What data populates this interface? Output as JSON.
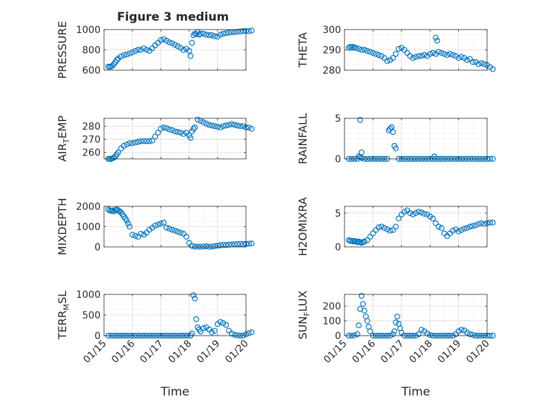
{
  "figure": {
    "title": "Figure 3 medium",
    "marker_color": "#0072BD",
    "grid_color": "#d4d4d4"
  },
  "chart_data": [
    {
      "type": "scatter",
      "id": "pressure",
      "ylabel": "PRESSURE",
      "xlim": [
        0,
        5
      ],
      "ylim": [
        600,
        1000
      ],
      "yticks": [
        600,
        800,
        1000
      ],
      "yticklabels": [
        "600",
        "800",
        "1000"
      ],
      "xticks": [
        0,
        1,
        2,
        3,
        4,
        5
      ],
      "xticklabels": [
        "01/15",
        "01/16",
        "01/17",
        "01/18",
        "01/19",
        "01/20"
      ],
      "show_xticklabels": false,
      "xlabel": "",
      "x": [
        0.15,
        0.2,
        0.25,
        0.3,
        0.35,
        0.4,
        0.45,
        0.5,
        0.6,
        0.7,
        0.8,
        0.9,
        1.0,
        1.1,
        1.2,
        1.3,
        1.4,
        1.5,
        1.6,
        1.7,
        1.8,
        1.9,
        2.0,
        2.1,
        2.2,
        2.3,
        2.4,
        2.5,
        2.6,
        2.7,
        2.8,
        2.9,
        3.0,
        3.05,
        3.1,
        3.15,
        3.2,
        3.25,
        3.3,
        3.35,
        3.4,
        3.5,
        3.6,
        3.7,
        3.8,
        3.9,
        4.0,
        4.1,
        4.2,
        4.3,
        4.4,
        4.5,
        4.6,
        4.7,
        4.8,
        4.9,
        5.0,
        5.1,
        5.2
      ],
      "y": [
        635,
        632,
        635,
        645,
        660,
        680,
        700,
        715,
        735,
        748,
        755,
        765,
        775,
        790,
        800,
        800,
        815,
        800,
        790,
        815,
        845,
        870,
        895,
        905,
        890,
        875,
        865,
        850,
        835,
        820,
        800,
        810,
        790,
        740,
        870,
        945,
        960,
        955,
        975,
        950,
        960,
        960,
        950,
        945,
        945,
        935,
        930,
        950,
        960,
        965,
        970,
        975,
        975,
        980,
        980,
        985,
        985,
        985,
        990
      ]
    },
    {
      "type": "scatter",
      "id": "theta",
      "ylabel": "THETA",
      "xlim": [
        0,
        5
      ],
      "ylim": [
        280,
        300
      ],
      "yticks": [
        280,
        290,
        300
      ],
      "yticklabels": [
        "280",
        "290",
        "300"
      ],
      "xticks": [
        0,
        1,
        2,
        3,
        4,
        5
      ],
      "xticklabels": [
        "01/15",
        "01/16",
        "01/17",
        "01/18",
        "01/19",
        "01/20"
      ],
      "show_xticklabels": false,
      "xlabel": "",
      "x": [
        0.15,
        0.2,
        0.25,
        0.3,
        0.35,
        0.4,
        0.5,
        0.6,
        0.7,
        0.8,
        0.9,
        1.0,
        1.1,
        1.2,
        1.3,
        1.4,
        1.5,
        1.6,
        1.7,
        1.8,
        1.9,
        2.0,
        2.1,
        2.2,
        2.3,
        2.4,
        2.5,
        2.6,
        2.7,
        2.8,
        2.9,
        3.0,
        3.1,
        3.2,
        3.3,
        3.4,
        3.5,
        3.6,
        3.7,
        3.8,
        3.9,
        4.0,
        4.1,
        4.2,
        4.3,
        4.4,
        4.5,
        4.6,
        4.7,
        4.8,
        4.9,
        5.0,
        5.1,
        5.2,
        3.2,
        3.25
      ],
      "y": [
        291,
        291.5,
        291,
        291.5,
        291,
        291,
        290.5,
        290,
        290,
        289.5,
        289,
        288.5,
        288,
        287.5,
        287,
        286,
        284.5,
        285,
        286,
        288,
        290.5,
        291,
        290,
        288.5,
        287,
        286,
        286.5,
        287,
        287,
        287.5,
        287,
        288,
        288.5,
        288,
        289,
        288.5,
        288,
        287.5,
        288,
        287.5,
        287,
        286,
        286.5,
        286,
        285,
        285.5,
        284,
        284,
        283,
        283.5,
        283,
        282.5,
        281.5,
        280.5,
        296,
        294.5
      ]
    },
    {
      "type": "scatter",
      "id": "air_temp",
      "ylabel": "AIR_TEMP",
      "xlim": [
        0,
        5
      ],
      "ylim": [
        255,
        286
      ],
      "yticks": [
        260,
        270,
        280
      ],
      "yticklabels": [
        "260",
        "270",
        "280"
      ],
      "xticks": [
        0,
        1,
        2,
        3,
        4,
        5
      ],
      "xticklabels": [
        "01/15",
        "01/16",
        "01/17",
        "01/18",
        "01/19",
        "01/20"
      ],
      "show_xticklabels": false,
      "xlabel": "",
      "x": [
        0.15,
        0.2,
        0.25,
        0.3,
        0.35,
        0.4,
        0.45,
        0.5,
        0.6,
        0.7,
        0.8,
        0.9,
        1.0,
        1.1,
        1.2,
        1.3,
        1.4,
        1.5,
        1.6,
        1.7,
        1.8,
        1.9,
        2.0,
        2.1,
        2.2,
        2.3,
        2.4,
        2.5,
        2.6,
        2.7,
        2.8,
        2.9,
        3.0,
        3.05,
        3.1,
        3.15,
        3.2,
        3.3,
        3.4,
        3.5,
        3.6,
        3.7,
        3.8,
        3.9,
        4.0,
        4.1,
        4.2,
        4.3,
        4.4,
        4.5,
        4.6,
        4.7,
        4.8,
        4.9,
        5.0,
        5.1,
        5.2
      ],
      "y": [
        255,
        255,
        255,
        255.5,
        256,
        257,
        258.5,
        260,
        263,
        265,
        266,
        267,
        267,
        267.5,
        268,
        268.5,
        268.5,
        268.5,
        268.5,
        269,
        272,
        275,
        278,
        279,
        278.5,
        277.5,
        277,
        276,
        275.5,
        275,
        274,
        275,
        273,
        271,
        276,
        278,
        279,
        285,
        284,
        283,
        282,
        281,
        280.5,
        280,
        279.5,
        279,
        280,
        280.5,
        281,
        281.5,
        281,
        280.5,
        280,
        280,
        279,
        279,
        278
      ]
    },
    {
      "type": "scatter",
      "id": "rainfall",
      "ylabel": "RAINFALL",
      "xlim": [
        0,
        5
      ],
      "ylim": [
        0,
        5
      ],
      "yticks": [
        0,
        5
      ],
      "yticklabels": [
        "0",
        "5"
      ],
      "xticks": [
        0,
        1,
        2,
        3,
        4,
        5
      ],
      "xticklabels": [
        "01/15",
        "01/16",
        "01/17",
        "01/18",
        "01/19",
        "01/20"
      ],
      "show_xticklabels": false,
      "xlabel": "",
      "x": [
        0.15,
        0.25,
        0.35,
        0.45,
        0.5,
        0.55,
        0.6,
        0.7,
        0.8,
        0.9,
        1.0,
        1.1,
        1.2,
        1.3,
        1.4,
        1.5,
        1.55,
        1.6,
        1.65,
        1.7,
        1.75,
        1.8,
        1.9,
        2.0,
        2.1,
        2.2,
        2.3,
        2.4,
        2.5,
        2.6,
        2.7,
        2.8,
        2.9,
        3.0,
        3.1,
        3.2,
        3.3,
        3.4,
        3.5,
        3.6,
        3.7,
        3.8,
        3.9,
        4.0,
        4.1,
        4.2,
        4.3,
        4.4,
        4.5,
        4.6,
        4.7,
        4.8,
        4.9,
        5.0,
        5.1,
        5.2,
        0.55,
        0.6,
        3.15
      ],
      "y": [
        0,
        0,
        0,
        0,
        0.3,
        4.8,
        0.8,
        0,
        0,
        0,
        0,
        0,
        0,
        0,
        0,
        0,
        3.5,
        3.7,
        3.9,
        3.3,
        1.6,
        1.3,
        0,
        0,
        0,
        0,
        0,
        0,
        0,
        0,
        0,
        0,
        0,
        0,
        0,
        0,
        0,
        0,
        0,
        0,
        0,
        0,
        0,
        0,
        0,
        0,
        0,
        0,
        0,
        0,
        0,
        0,
        0,
        0,
        0,
        0,
        0.2,
        0.1,
        0.3
      ]
    },
    {
      "type": "scatter",
      "id": "mixdepth",
      "ylabel": "MIXDEPTH",
      "xlim": [
        0,
        5
      ],
      "ylim": [
        0,
        2000
      ],
      "yticks": [
        0,
        1000,
        2000
      ],
      "yticklabels": [
        "0",
        "1000",
        "2000"
      ],
      "xticks": [
        0,
        1,
        2,
        3,
        4,
        5
      ],
      "xticklabels": [
        "01/15",
        "01/16",
        "01/17",
        "01/18",
        "01/19",
        "01/20"
      ],
      "show_xticklabels": false,
      "xlabel": "",
      "x": [
        0.15,
        0.2,
        0.25,
        0.3,
        0.35,
        0.4,
        0.45,
        0.5,
        0.55,
        0.6,
        0.65,
        0.7,
        0.75,
        0.8,
        0.85,
        0.9,
        1.0,
        1.1,
        1.2,
        1.3,
        1.4,
        1.5,
        1.6,
        1.7,
        1.8,
        1.9,
        2.0,
        2.1,
        2.2,
        2.3,
        2.4,
        2.5,
        2.6,
        2.7,
        2.8,
        2.9,
        3.0,
        3.1,
        3.2,
        3.3,
        3.4,
        3.5,
        3.6,
        3.7,
        3.8,
        3.9,
        4.0,
        4.1,
        4.2,
        4.3,
        4.4,
        4.5,
        4.6,
        4.7,
        4.8,
        4.9,
        5.0,
        5.1,
        5.2
      ],
      "y": [
        1850,
        1800,
        1780,
        1800,
        1750,
        1820,
        1850,
        1800,
        1750,
        1700,
        1600,
        1500,
        1400,
        1300,
        1150,
        1000,
        600,
        550,
        500,
        650,
        600,
        700,
        850,
        950,
        1050,
        1100,
        1150,
        1200,
        950,
        900,
        850,
        800,
        750,
        700,
        650,
        500,
        200,
        50,
        20,
        10,
        15,
        20,
        30,
        10,
        20,
        40,
        60,
        80,
        100,
        90,
        110,
        120,
        130,
        140,
        150,
        140,
        150,
        160,
        170
      ]
    },
    {
      "type": "scatter",
      "id": "h2omixra",
      "ylabel": "H2OMIXRA",
      "xlim": [
        0,
        5
      ],
      "ylim": [
        0,
        6
      ],
      "yticks": [
        0,
        5
      ],
      "yticklabels": [
        "0",
        "5"
      ],
      "xticks": [
        0,
        1,
        2,
        3,
        4,
        5
      ],
      "xticklabels": [
        "01/15",
        "01/16",
        "01/17",
        "01/18",
        "01/19",
        "01/20"
      ],
      "show_xticklabels": false,
      "xlabel": "",
      "x": [
        0.15,
        0.2,
        0.25,
        0.3,
        0.35,
        0.4,
        0.45,
        0.5,
        0.55,
        0.6,
        0.65,
        0.7,
        0.8,
        0.9,
        1.0,
        1.1,
        1.2,
        1.3,
        1.4,
        1.5,
        1.6,
        1.7,
        1.8,
        1.9,
        2.0,
        2.1,
        2.2,
        2.3,
        2.4,
        2.5,
        2.6,
        2.7,
        2.8,
        2.9,
        3.0,
        3.1,
        3.2,
        3.3,
        3.4,
        3.5,
        3.6,
        3.7,
        3.8,
        3.9,
        4.0,
        4.1,
        4.2,
        4.3,
        4.4,
        4.5,
        4.6,
        4.7,
        4.8,
        4.9,
        5.0,
        5.1,
        5.2
      ],
      "y": [
        1.0,
        0.9,
        0.9,
        0.8,
        0.9,
        0.8,
        0.7,
        0.8,
        0.7,
        0.6,
        0.7,
        0.8,
        1.0,
        1.5,
        2.0,
        2.5,
        2.9,
        3.0,
        2.8,
        2.6,
        2.4,
        2.5,
        3.0,
        4.2,
        4.8,
        5.2,
        5.4,
        5.0,
        4.8,
        5.0,
        5.2,
        5.1,
        4.9,
        4.8,
        4.5,
        4.2,
        3.5,
        3.0,
        2.8,
        2.0,
        1.6,
        2.0,
        2.4,
        2.6,
        2.3,
        2.5,
        2.7,
        2.8,
        3.0,
        3.1,
        3.2,
        3.4,
        3.5,
        3.4,
        3.5,
        3.6,
        3.6
      ]
    },
    {
      "type": "scatter",
      "id": "terr_msl",
      "ylabel": "TERR_MSL",
      "xlim": [
        0,
        5
      ],
      "ylim": [
        0,
        1000
      ],
      "yticks": [
        0,
        500,
        1000
      ],
      "yticklabels": [
        "0",
        "500",
        "1000"
      ],
      "xticks": [
        0,
        1,
        2,
        3,
        4,
        5
      ],
      "xticklabels": [
        "01/15",
        "01/16",
        "01/17",
        "01/18",
        "01/19",
        "01/20"
      ],
      "show_xticklabels": true,
      "xlabel": "Time",
      "x": [
        0.15,
        0.25,
        0.35,
        0.45,
        0.55,
        0.65,
        0.75,
        0.85,
        0.95,
        1.05,
        1.15,
        1.25,
        1.35,
        1.45,
        1.55,
        1.65,
        1.75,
        1.85,
        1.95,
        2.05,
        2.15,
        2.25,
        2.35,
        2.45,
        2.55,
        2.65,
        2.75,
        2.85,
        2.95,
        3.05,
        3.1,
        3.15,
        3.2,
        3.25,
        3.3,
        3.35,
        3.4,
        3.5,
        3.6,
        3.7,
        3.8,
        3.9,
        4.0,
        4.1,
        4.2,
        4.3,
        4.4,
        4.5,
        4.6,
        4.7,
        4.8,
        4.9,
        5.0,
        5.1,
        5.2
      ],
      "y": [
        0,
        0,
        0,
        0,
        0,
        0,
        0,
        0,
        0,
        0,
        0,
        0,
        0,
        0,
        0,
        0,
        0,
        0,
        0,
        0,
        0,
        0,
        0,
        0,
        0,
        0,
        0,
        0,
        0,
        0,
        50,
        980,
        900,
        400,
        200,
        150,
        100,
        180,
        200,
        150,
        80,
        120,
        280,
        330,
        300,
        260,
        120,
        50,
        20,
        10,
        0,
        0,
        30,
        60,
        80
      ]
    },
    {
      "type": "scatter",
      "id": "sun_flux",
      "ylabel": "SUN_FLUX",
      "xlim": [
        0,
        5
      ],
      "ylim": [
        0,
        280
      ],
      "yticks": [
        0,
        100,
        200
      ],
      "yticklabels": [
        "0",
        "100",
        "200"
      ],
      "xticks": [
        0,
        1,
        2,
        3,
        4,
        5
      ],
      "xticklabels": [
        "01/15",
        "01/16",
        "01/17",
        "01/18",
        "01/19",
        "01/20"
      ],
      "show_xticklabels": true,
      "xlabel": "Time",
      "x": [
        0.15,
        0.25,
        0.35,
        0.45,
        0.5,
        0.55,
        0.6,
        0.65,
        0.7,
        0.75,
        0.8,
        0.85,
        0.9,
        1.0,
        1.1,
        1.2,
        1.3,
        1.4,
        1.5,
        1.6,
        1.7,
        1.75,
        1.8,
        1.85,
        1.9,
        1.95,
        2.0,
        2.1,
        2.2,
        2.3,
        2.4,
        2.5,
        2.6,
        2.7,
        2.8,
        2.9,
        3.0,
        3.1,
        3.2,
        3.3,
        3.4,
        3.5,
        3.6,
        3.7,
        3.8,
        3.9,
        4.0,
        4.1,
        4.2,
        4.3,
        4.4,
        4.5,
        4.6,
        4.7,
        4.8,
        4.9,
        5.0,
        5.1,
        5.2
      ],
      "y": [
        0,
        0,
        2,
        10,
        70,
        180,
        270,
        215,
        170,
        130,
        100,
        60,
        30,
        0,
        0,
        0,
        0,
        0,
        0,
        0,
        10,
        30,
        90,
        130,
        80,
        50,
        20,
        0,
        0,
        0,
        0,
        0,
        10,
        40,
        30,
        15,
        5,
        0,
        0,
        0,
        0,
        0,
        0,
        0,
        0,
        10,
        30,
        40,
        35,
        20,
        10,
        5,
        0,
        0,
        0,
        0,
        0,
        0,
        0
      ]
    }
  ]
}
